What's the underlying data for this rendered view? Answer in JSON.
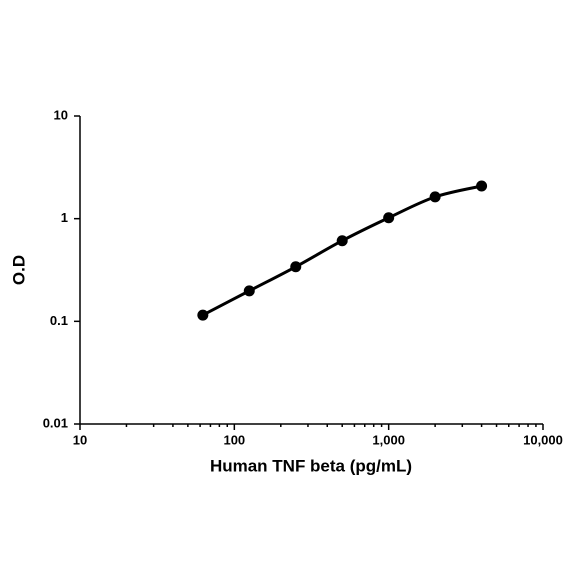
{
  "chart_data": {
    "type": "line",
    "x_label": "Human TNF beta (pg/mL)",
    "y_label": "O.D",
    "x": [
      62.5,
      125,
      250,
      500,
      1000,
      2000,
      4000
    ],
    "series": [
      {
        "color": "#000000",
        "values": [
          0.115,
          0.198,
          0.34,
          0.61,
          1.02,
          1.63,
          2.08
        ]
      }
    ],
    "xlog": true,
    "ylog": true,
    "xlim": [
      10,
      10000
    ],
    "ylim": [
      0.01,
      10
    ],
    "xticks": [
      10,
      100,
      {
        "value": 1000,
        "label": "1,000"
      },
      {
        "value": 10000,
        "label": "10,000"
      }
    ],
    "yticks": [
      0.01,
      0.1,
      1,
      10
    ],
    "grid": false
  }
}
